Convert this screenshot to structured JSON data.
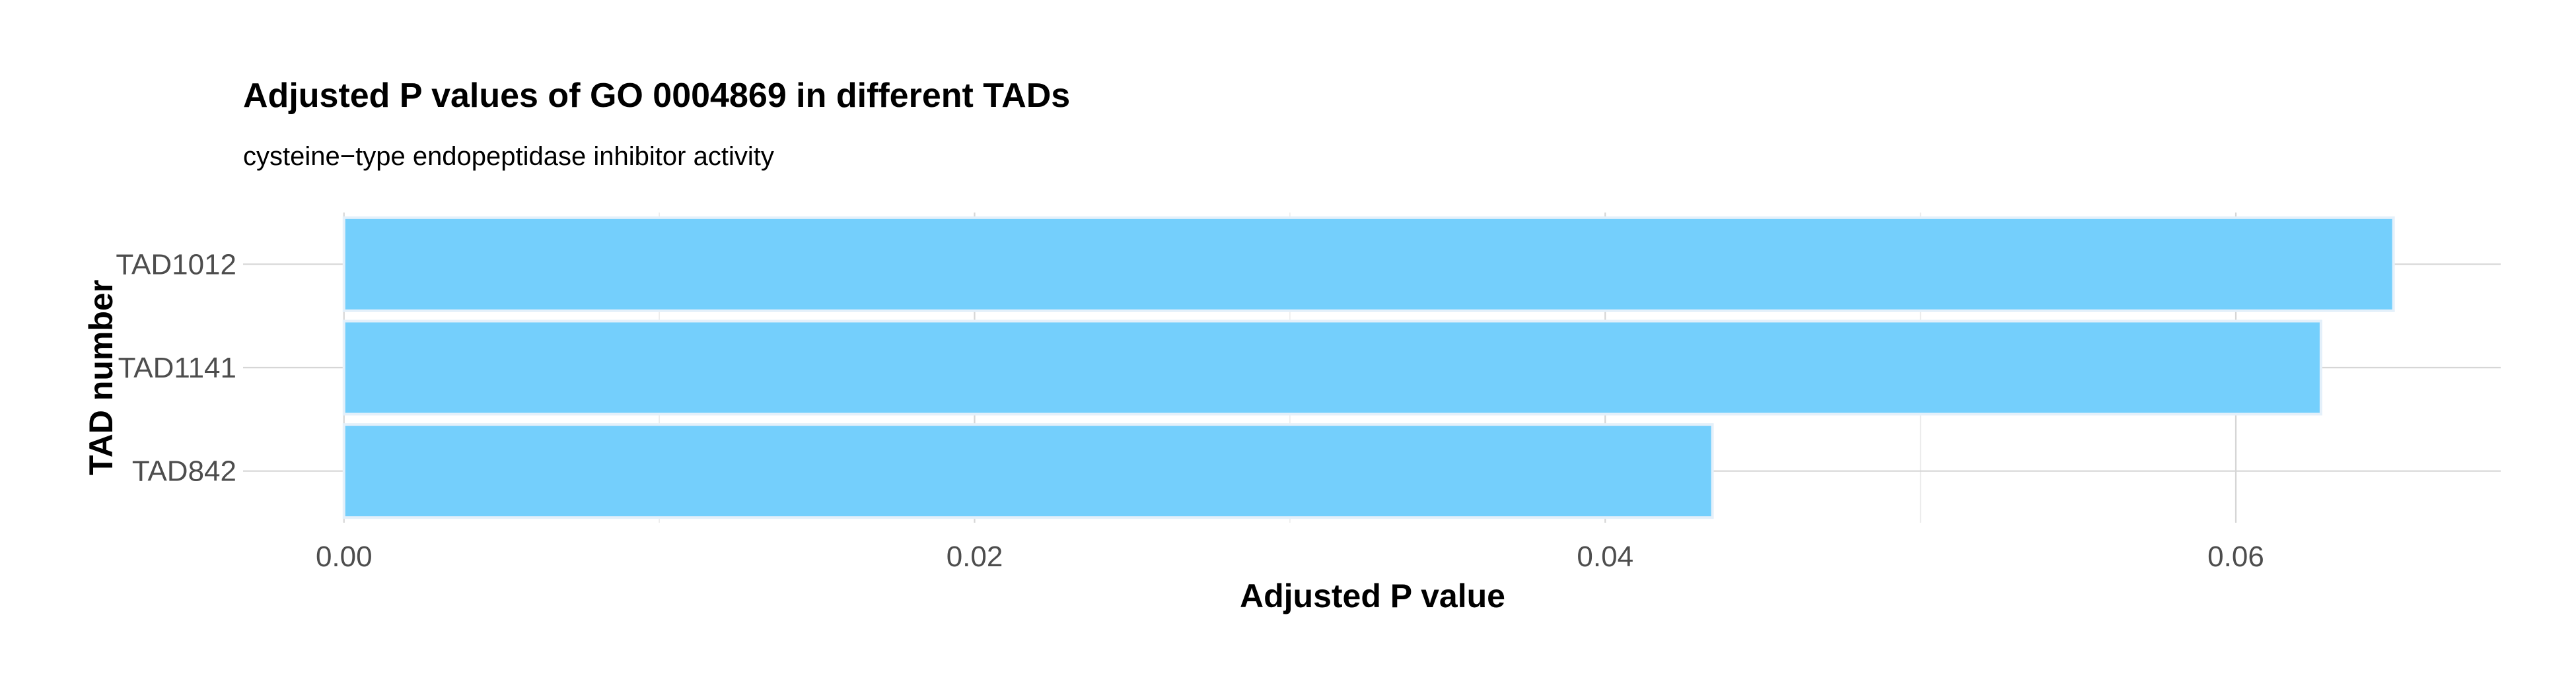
{
  "chart_data": {
    "type": "bar",
    "orientation": "horizontal",
    "title": "Adjusted P values of GO 0004869 in different TADs",
    "subtitle": "cysteine−type endopeptidase inhibitor activity",
    "xlabel": "Adjusted P value",
    "ylabel": "TAD number",
    "categories": [
      "TAD1012",
      "TAD1141",
      "TAD842"
    ],
    "values": [
      0.065,
      0.0627,
      0.0434
    ],
    "xlim": [
      -0.0032,
      0.0684
    ],
    "xticks": [
      0.0,
      0.02,
      0.04,
      0.06
    ],
    "xtick_labels": [
      "0.00",
      "0.02",
      "0.04",
      "0.06"
    ],
    "grid": true,
    "bar_fill": "#74CFFC",
    "bar_outline": "#E4F0FA",
    "legend": "none"
  }
}
